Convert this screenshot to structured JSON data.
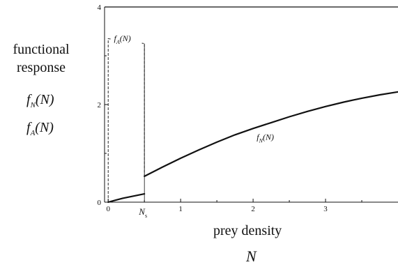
{
  "y_axis_label": {
    "line1": "functional",
    "line2": "response",
    "series1": {
      "base": "f",
      "sub": "N",
      "arg": "(N)"
    },
    "series2": {
      "base": "f",
      "sub": "A",
      "arg": "(N)"
    }
  },
  "x_axis_label": {
    "text": "prey density",
    "variable": "N"
  },
  "ns_label": {
    "base": "N",
    "sub": "s"
  },
  "colors": {
    "line": "#111111",
    "background": "#ffffff"
  },
  "chart_data": {
    "type": "line",
    "title": "",
    "xlabel": "prey density N",
    "ylabel": "functional response f_N(N), f_A(N)",
    "xlim": [
      -0.05,
      4.0
    ],
    "ylim": [
      0,
      4
    ],
    "x_ticks": [
      "0",
      "1",
      "2",
      "3"
    ],
    "y_ticks": [
      "0",
      "2",
      "4"
    ],
    "threshold": {
      "label": "N_s",
      "x": 0.5
    },
    "grid": false,
    "series": [
      {
        "name": "f_N(N)",
        "style": "solid",
        "x": [
          0,
          0.1,
          0.2,
          0.3,
          0.4,
          0.5,
          0.5,
          0.75,
          1.0,
          1.25,
          1.5,
          1.75,
          2.0,
          2.25,
          2.5,
          2.75,
          3.0,
          3.25,
          3.5,
          3.75,
          4.0
        ],
        "y": [
          0,
          0.04,
          0.08,
          0.11,
          0.14,
          0.17,
          0.53,
          0.72,
          0.9,
          1.07,
          1.23,
          1.38,
          1.51,
          1.63,
          1.75,
          1.86,
          1.96,
          2.05,
          2.13,
          2.2,
          2.26
        ]
      },
      {
        "name": "f_A(N)",
        "style": "dashed",
        "x": [
          0,
          0,
          0.5,
          0.5
        ],
        "y": [
          0,
          3.35,
          3.25,
          0.53
        ]
      }
    ],
    "annotations": [
      {
        "text": "f_A(N)",
        "x": 0.08,
        "y": 3.3
      },
      {
        "text": "f_N(N)",
        "x": 2.05,
        "y": 1.28
      }
    ]
  }
}
